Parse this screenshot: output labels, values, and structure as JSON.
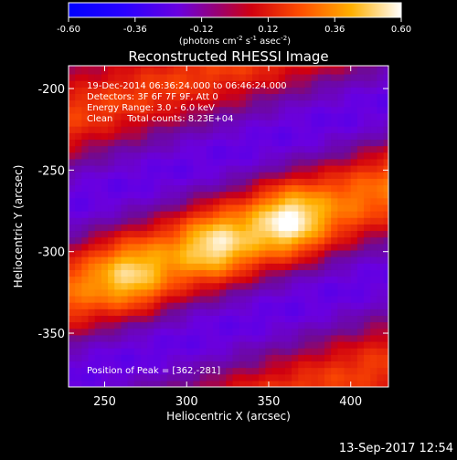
{
  "colorbar": {
    "ticks": [
      "-0.60",
      "-0.36",
      "-0.12",
      "0.12",
      "0.36",
      "0.60"
    ],
    "tick_values": [
      -0.6,
      -0.36,
      -0.12,
      0.12,
      0.36,
      0.6
    ],
    "range": [
      -0.6,
      0.6
    ],
    "unit_label_main": "(photons cm",
    "unit_exp1": "-2",
    "unit_mid": " s",
    "unit_exp2": "-1",
    "unit_end": " asec",
    "unit_exp3": "-2",
    "unit_close": ")"
  },
  "footer": {
    "timestamp": "13-Sep-2017 12:54"
  },
  "chart_data": {
    "type": "heatmap",
    "title": "Reconstructed RHESSI Image",
    "xlabel": "Heliocentric X (arcsec)",
    "ylabel": "Heliocentric Y (arcsec)",
    "xlim": [
      228,
      423
    ],
    "ylim": [
      -383,
      -186
    ],
    "xticks": [
      250,
      300,
      350,
      400
    ],
    "yticks": [
      -200,
      -250,
      -300,
      -350
    ],
    "xtick_labels": [
      "250",
      "300",
      "350",
      "400"
    ],
    "ytick_labels": [
      "-200",
      "-250",
      "-300",
      "-350"
    ],
    "annotations": [
      "19-Dec-2014 06:36:24.000 to 06:46:24.000",
      "Detectors: 3F 6F 7F 9F, Att 0",
      "Energy Range: 3.0 - 6.0 keV",
      "Clean     Total counts: 8.23E+04"
    ],
    "peak_label": "Position of Peak = [362,-281]",
    "peak": [
      362,
      -281
    ],
    "band_slope": 0.32,
    "sources": [
      {
        "x": 362,
        "y": -281,
        "value": 0.6
      },
      {
        "x": 318,
        "y": -296,
        "value": 0.54
      },
      {
        "x": 267,
        "y": -316,
        "value": 0.5
      }
    ]
  }
}
